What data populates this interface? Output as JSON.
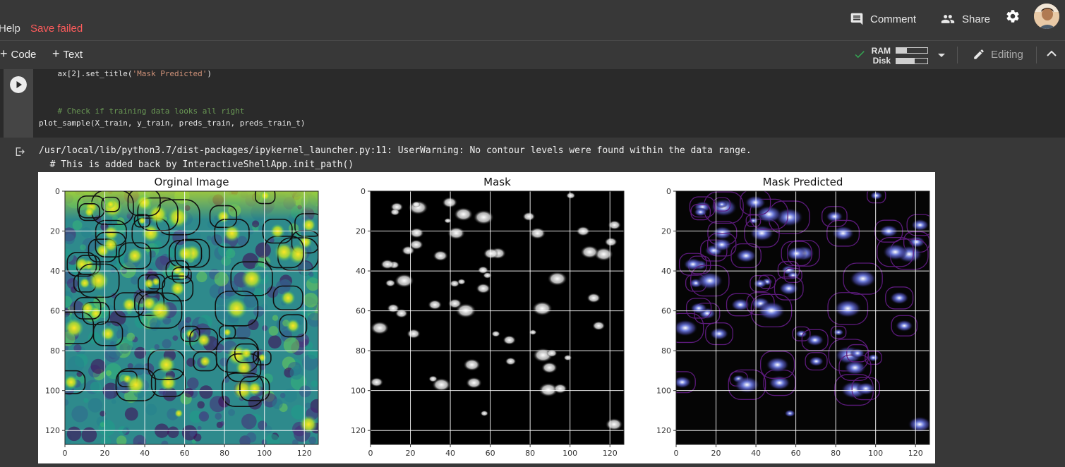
{
  "menu": {
    "help": "Help",
    "status": "Save failed"
  },
  "header": {
    "comment": "Comment",
    "share": "Share",
    "settings_icon": "gear-icon",
    "avatar_icon": "user-avatar"
  },
  "toolbar": {
    "add_code": "Code",
    "add_text": "Text",
    "ram_label": "RAM",
    "disk_label": "Disk",
    "ram_usage": 0.35,
    "disk_usage": 0.6,
    "editing": "Editing"
  },
  "code_cell": {
    "line1_prefix": "    ax[2].set_title(",
    "line1_string": "'Mask Predicted'",
    "line1_suffix": ")",
    "line2_comment": "    # Check if training data looks all right",
    "line3": "plot_sample(X_train, y_train, preds_train, preds_train_t)"
  },
  "output": {
    "warning_line1": "/usr/local/lib/python3.7/dist-packages/ipykernel_launcher.py:11: UserWarning: No contour levels were found within the data range.",
    "warning_line2": "  # This is added back by InteractiveShellApp.init_path()"
  },
  "chart_data": [
    {
      "type": "heatmap",
      "title": "Orginal Image",
      "x_ticks": [
        "0",
        "20",
        "40",
        "60",
        "80",
        "100",
        "120"
      ],
      "y_ticks": [
        "0",
        "20",
        "40",
        "60",
        "80",
        "100",
        "120"
      ],
      "xlim": [
        0,
        127
      ],
      "ylim": [
        127,
        0
      ],
      "grid": true,
      "colormap": "viridis"
    },
    {
      "type": "heatmap",
      "title": "Mask",
      "x_ticks": [
        "0",
        "20",
        "40",
        "60",
        "80",
        "100",
        "120"
      ],
      "y_ticks": [
        "0",
        "20",
        "40",
        "60",
        "80",
        "100",
        "120"
      ],
      "xlim": [
        0,
        127
      ],
      "ylim": [
        127,
        0
      ],
      "grid": true,
      "colormap": "gray"
    },
    {
      "type": "heatmap",
      "title": "Mask Predicted",
      "x_ticks": [
        "0",
        "20",
        "40",
        "60",
        "80",
        "100",
        "120"
      ],
      "y_ticks": [
        "0",
        "20",
        "40",
        "60",
        "80",
        "100",
        "120"
      ],
      "xlim": [
        0,
        127
      ],
      "ylim": [
        127,
        0
      ],
      "grid": true,
      "colormap": "gray"
    }
  ]
}
